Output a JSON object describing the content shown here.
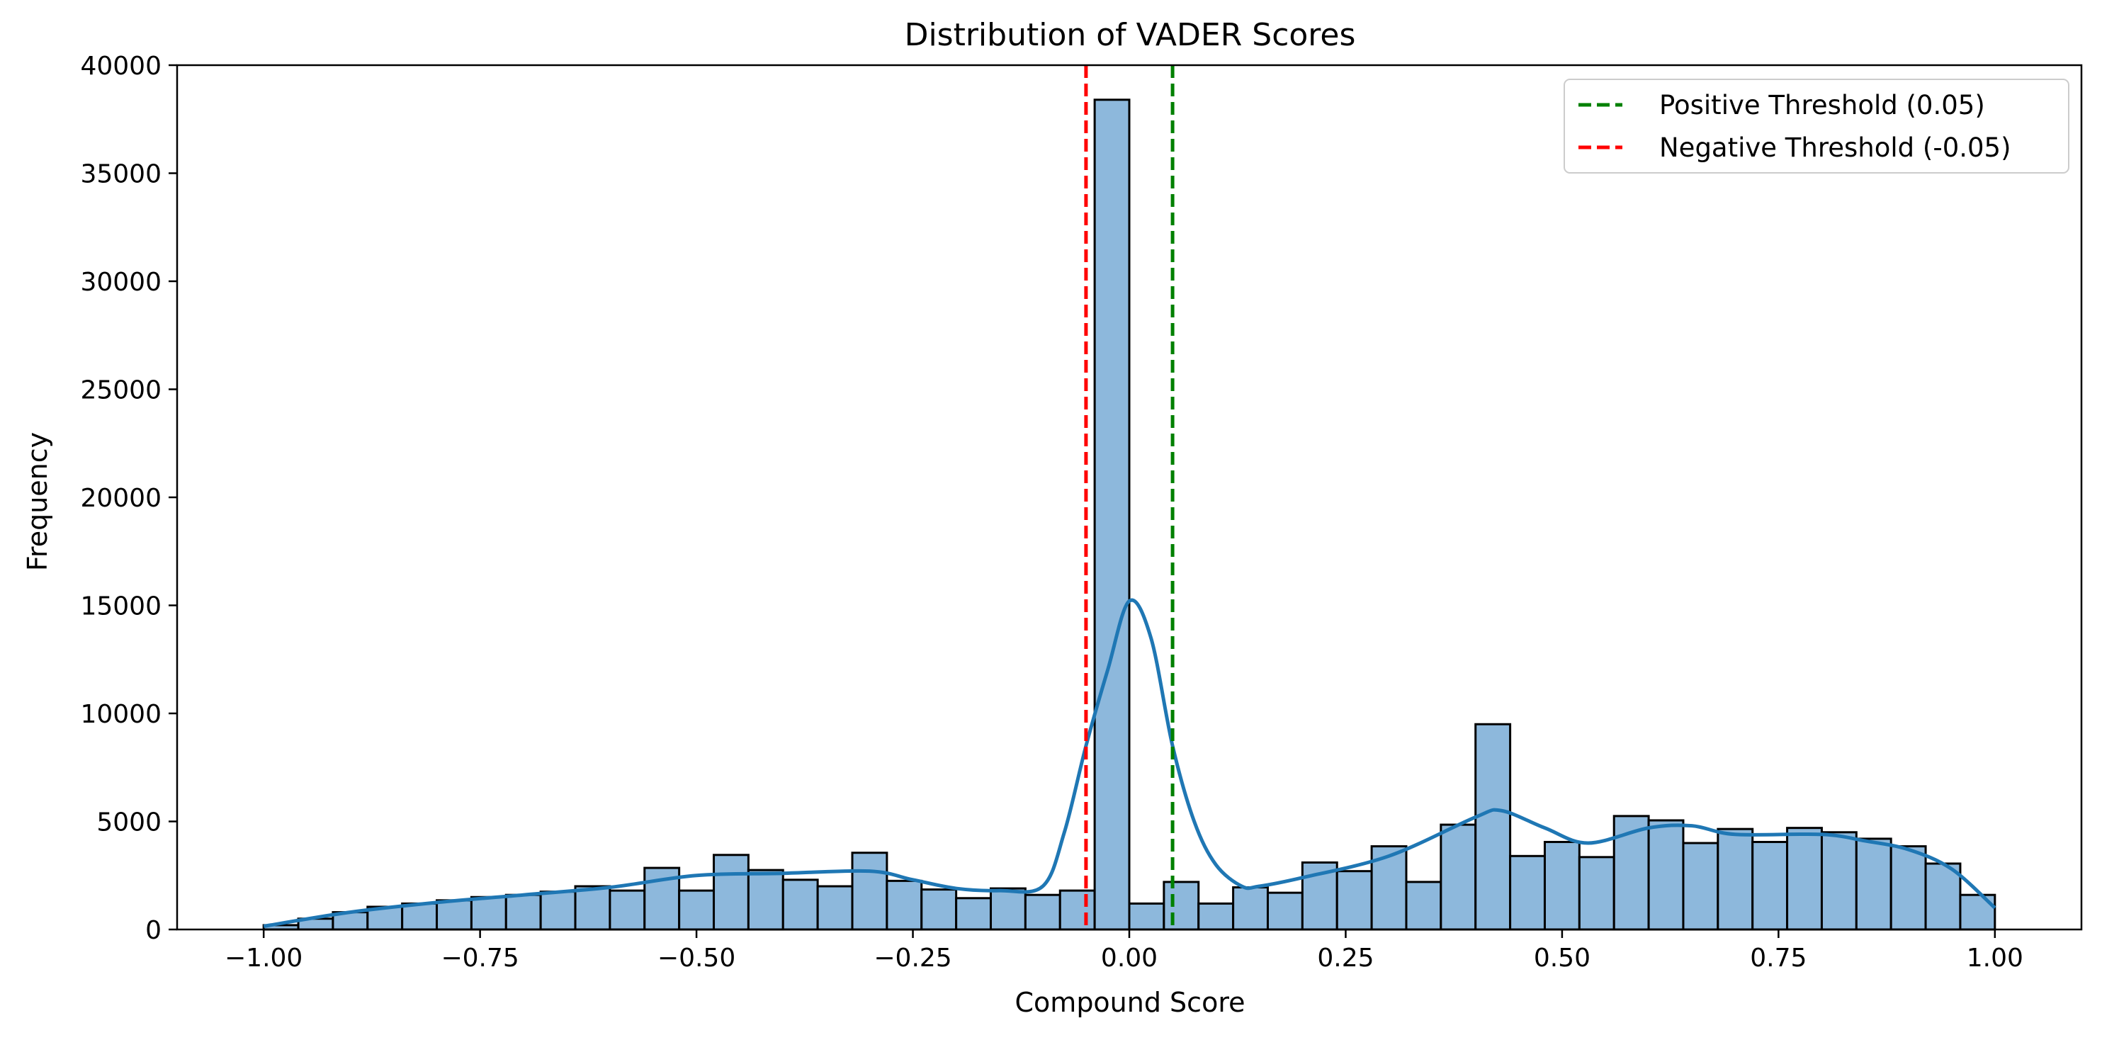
{
  "chart_data": {
    "type": "bar",
    "title": "Distribution of VADER Scores",
    "xlabel": "Compound Score",
    "ylabel": "Frequency",
    "xlim": [
      -1.1,
      1.1
    ],
    "ylim": [
      0,
      40000
    ],
    "x_ticks": [
      -1.0,
      -0.75,
      -0.5,
      -0.25,
      0.0,
      0.25,
      0.5,
      0.75,
      1.0
    ],
    "x_tick_labels": [
      "−1.00",
      "−0.75",
      "−0.50",
      "−0.25",
      "0.00",
      "0.25",
      "0.50",
      "0.75",
      "1.00"
    ],
    "y_ticks": [
      0,
      5000,
      10000,
      15000,
      20000,
      25000,
      30000,
      35000,
      40000
    ],
    "y_tick_labels": [
      "0",
      "5000",
      "10000",
      "15000",
      "20000",
      "25000",
      "30000",
      "35000",
      "40000"
    ],
    "grid": false,
    "bins": {
      "start": -1.0,
      "end": 1.0,
      "count": 50,
      "values": [
        200,
        500,
        800,
        1050,
        1200,
        1350,
        1500,
        1600,
        1750,
        2000,
        1800,
        2850,
        1800,
        3450,
        2750,
        2300,
        2000,
        3550,
        2250,
        1850,
        1450,
        1900,
        1600,
        1800,
        38400,
        1200,
        2200,
        1200,
        1950,
        1700,
        3100,
        2700,
        3850,
        2200,
        4850,
        9500,
        3400,
        4050,
        3350,
        5250,
        5050,
        4000,
        4650,
        4050,
        4700,
        4500,
        4200,
        3850,
        3050,
        1600
      ],
      "fill_color": "#8db8dc",
      "edge_color": "#000000"
    },
    "kde": {
      "color": "#1f77b4",
      "x": [
        -1.0,
        -0.9,
        -0.8,
        -0.7,
        -0.6,
        -0.5,
        -0.4,
        -0.3,
        -0.25,
        -0.2,
        -0.15,
        -0.1,
        -0.075,
        -0.05,
        -0.025,
        0.0,
        0.025,
        0.05,
        0.075,
        0.1,
        0.13,
        0.15,
        0.2,
        0.3,
        0.4,
        0.43,
        0.48,
        0.53,
        0.6,
        0.65,
        0.7,
        0.8,
        0.85,
        0.9,
        0.95,
        1.0
      ],
      "y": [
        150,
        800,
        1250,
        1600,
        1950,
        2500,
        2600,
        2700,
        2300,
        1900,
        1800,
        2000,
        4500,
        8500,
        12000,
        15200,
        13500,
        8500,
        5000,
        3000,
        2000,
        2000,
        2400,
        3400,
        5200,
        5500,
        4700,
        4000,
        4700,
        4800,
        4400,
        4400,
        4100,
        3700,
        2800,
        1000
      ]
    },
    "thresholds": [
      {
        "name": "Positive Threshold (0.05)",
        "x": 0.05,
        "color": "#008000"
      },
      {
        "name": "Negative Threshold (-0.05)",
        "x": -0.05,
        "color": "#ff0000"
      }
    ],
    "legend_position": "top-right"
  }
}
